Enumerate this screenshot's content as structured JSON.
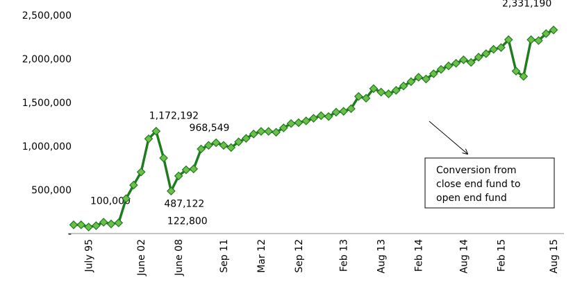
{
  "chart_data": {
    "type": "line",
    "categories": [
      null,
      null,
      "July 95",
      null,
      null,
      null,
      null,
      null,
      null,
      "June 02",
      null,
      null,
      null,
      null,
      "June 08",
      null,
      null,
      null,
      null,
      null,
      "Sep 11",
      null,
      null,
      null,
      null,
      "Mar 12",
      null,
      null,
      null,
      null,
      "Sep 12",
      null,
      null,
      null,
      null,
      null,
      "Feb 13",
      null,
      null,
      null,
      null,
      "Aug 13",
      null,
      null,
      null,
      null,
      "Feb 14",
      null,
      null,
      null,
      null,
      null,
      "Aug 14",
      null,
      null,
      null,
      null,
      "Feb 15",
      null,
      null,
      null,
      null,
      null,
      null,
      "Aug 15"
    ],
    "series": [
      {
        "name": null,
        "color": "#1e7b1e",
        "marker_color": "#6cc04a",
        "values": [
          100000,
          100000,
          75000,
          90000,
          130000,
          110000,
          122800,
          400000,
          555000,
          705000,
          1085000,
          1172192,
          865000,
          487122,
          660000,
          730000,
          740000,
          968549,
          1010000,
          1040000,
          1010000,
          985000,
          1050000,
          1090000,
          1140000,
          1170000,
          1170000,
          1160000,
          1210000,
          1260000,
          1270000,
          1290000,
          1320000,
          1350000,
          1340000,
          1390000,
          1400000,
          1430000,
          1570000,
          1550000,
          1660000,
          1620000,
          1600000,
          1640000,
          1690000,
          1740000,
          1790000,
          1770000,
          1830000,
          1880000,
          1920000,
          1950000,
          1990000,
          1960000,
          2020000,
          2060000,
          2110000,
          2130000,
          2220000,
          1860000,
          1800000,
          2220000,
          2210000,
          2290000,
          2331190
        ],
        "value_labels": [
          "100,000",
          null,
          null,
          null,
          null,
          null,
          "122,800",
          null,
          null,
          null,
          null,
          "1,172,192",
          null,
          "487,122",
          null,
          null,
          null,
          "968,549",
          null,
          null,
          null,
          null,
          null,
          null,
          null,
          null,
          null,
          null,
          null,
          null,
          null,
          null,
          null,
          null,
          null,
          null,
          null,
          null,
          null,
          null,
          null,
          null,
          null,
          null,
          null,
          null,
          null,
          null,
          null,
          null,
          null,
          null,
          null,
          null,
          null,
          null,
          null,
          null,
          null,
          null,
          null,
          null,
          null,
          null,
          "2,331,190"
        ]
      }
    ],
    "ylim": [
      0,
      2500000
    ],
    "yticks": [
      {
        "value": 0,
        "label": "-"
      },
      {
        "value": 500000,
        "label": "500,000"
      },
      {
        "value": 1000000,
        "label": "1,000,000"
      },
      {
        "value": 1500000,
        "label": "1,500,000"
      },
      {
        "value": 2000000,
        "label": "2,000,000"
      },
      {
        "value": 2500000,
        "label": "2,500,000"
      }
    ],
    "annotation": {
      "lines": [
        "Conversion from",
        "close end fund to",
        "open end fund"
      ]
    }
  }
}
